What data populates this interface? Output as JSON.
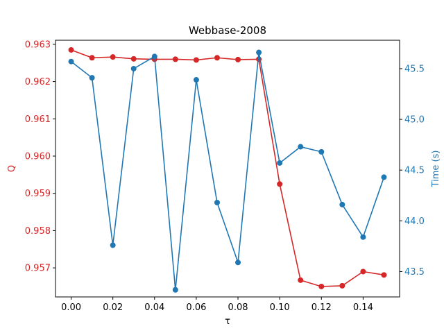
{
  "chart_data": {
    "type": "line",
    "title": "Webbase-2008",
    "xlabel": "τ",
    "ylabel_left": "Q",
    "ylabel_right": "Time (s)",
    "x": [
      0.0,
      0.01,
      0.02,
      0.03,
      0.04,
      0.05,
      0.06,
      0.07,
      0.08,
      0.09,
      0.1,
      0.11,
      0.12,
      0.13,
      0.14,
      0.15
    ],
    "xlim": [
      -0.0075,
      0.1575
    ],
    "x_ticks": [
      0.0,
      0.02,
      0.04,
      0.06,
      0.08,
      0.1,
      0.12,
      0.14
    ],
    "x_tick_labels": [
      "0.00",
      "0.02",
      "0.04",
      "0.06",
      "0.08",
      "0.10",
      "0.12",
      "0.14"
    ],
    "y_left_lim": [
      0.95622,
      0.96311
    ],
    "y_left_ticks": [
      0.957,
      0.958,
      0.959,
      0.96,
      0.961,
      0.962,
      0.963
    ],
    "y_left_tick_labels": [
      "0.957",
      "0.958",
      "0.959",
      "0.960",
      "0.961",
      "0.962",
      "0.963"
    ],
    "y_right_lim": [
      43.25,
      45.78
    ],
    "y_right_ticks": [
      43.5,
      44.0,
      44.5,
      45.0,
      45.5
    ],
    "y_right_tick_labels": [
      "43.5",
      "44.0",
      "44.5",
      "45.0",
      "45.5"
    ],
    "grid": false,
    "series": [
      {
        "axis": "left",
        "color": "#d62728",
        "values": [
          0.96285,
          0.96264,
          0.96266,
          0.96261,
          0.9626,
          0.9626,
          0.96258,
          0.96264,
          0.96259,
          0.9626,
          0.95925,
          0.95667,
          0.9565,
          0.95652,
          0.9569,
          0.95681
        ]
      },
      {
        "axis": "right",
        "color": "#1f77b4",
        "values": [
          45.57,
          45.41,
          43.76,
          45.5,
          45.62,
          43.32,
          45.39,
          44.18,
          43.59,
          45.66,
          44.57,
          44.73,
          44.68,
          44.16,
          43.84,
          44.43
        ]
      }
    ]
  }
}
